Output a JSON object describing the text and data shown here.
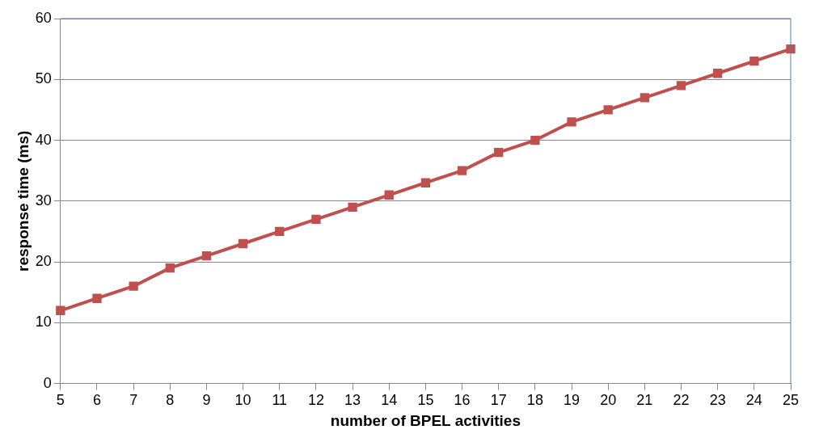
{
  "chart_data": {
    "type": "line",
    "xlabel": "number of BPEL activities",
    "ylabel": "response time (ms)",
    "categories": [
      "5",
      "6",
      "7",
      "8",
      "9",
      "10",
      "11",
      "12",
      "13",
      "14",
      "15",
      "16",
      "17",
      "18",
      "19",
      "20",
      "21",
      "22",
      "23",
      "24",
      "25"
    ],
    "series": [
      {
        "color": "#c0504d",
        "values": [
          12,
          14,
          16,
          19,
          21,
          23,
          25,
          27,
          29,
          31,
          33,
          35,
          38,
          40,
          43,
          45,
          47,
          49,
          51,
          53,
          55
        ]
      }
    ],
    "ylim": [
      0,
      60
    ],
    "yticks": [
      0,
      10,
      20,
      30,
      40,
      50,
      60
    ],
    "grid": "y",
    "legend": false,
    "marker": "square",
    "line_style": "solid"
  }
}
